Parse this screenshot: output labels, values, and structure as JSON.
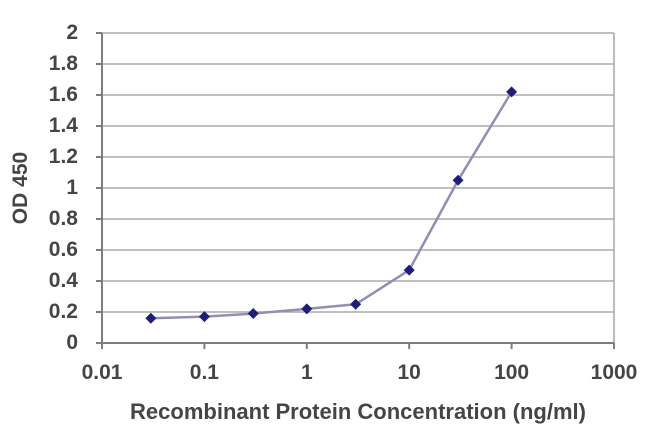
{
  "chart_data": {
    "type": "line",
    "xlabel": "Recombinant Protein Concentration (ng/ml)",
    "ylabel": "OD 450",
    "x_scale": "log",
    "xlim": [
      0.01,
      1000
    ],
    "ylim": [
      0,
      2
    ],
    "x_tick_values": [
      0.01,
      0.1,
      1,
      10,
      100,
      1000
    ],
    "x_tick_labels": [
      "0.01",
      "0.1",
      "1",
      "10",
      "100",
      "1000"
    ],
    "y_tick_values": [
      0,
      0.2,
      0.4,
      0.6,
      0.8,
      1,
      1.2,
      1.4,
      1.6,
      1.8,
      2
    ],
    "y_tick_labels": [
      "0",
      "0.2",
      "0.4",
      "0.6",
      "0.8",
      "1",
      "1.2",
      "1.4",
      "1.6",
      "1.8",
      "2"
    ],
    "grid": "horizontal",
    "legend": "none",
    "series": [
      {
        "x": [
          0.03,
          0.1,
          0.3,
          1,
          3,
          10,
          30,
          100
        ],
        "y": [
          0.16,
          0.17,
          0.19,
          0.22,
          0.25,
          0.47,
          1.05,
          1.62
        ],
        "marker": "diamond",
        "line_color": "#9090b2",
        "marker_color": "#1e1e78"
      }
    ],
    "colors": {
      "axis": "#7d7d7d",
      "grid": "#ababab",
      "text": "#454545",
      "background": "#ffffff"
    }
  }
}
